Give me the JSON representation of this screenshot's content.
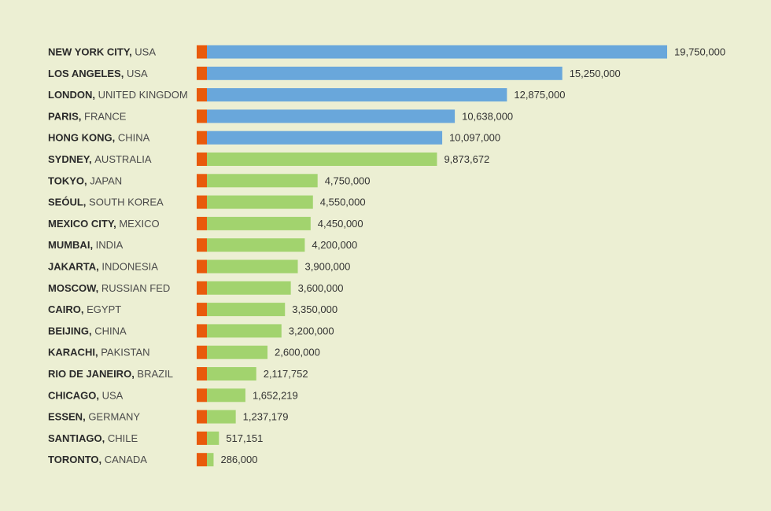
{
  "colors": {
    "background": "#ecefd3",
    "accent": "#e85a0c",
    "top_series": "#69a7db",
    "other_series": "#a2d36e"
  },
  "chart_data": {
    "type": "bar",
    "orientation": "horizontal",
    "title": "",
    "xlabel": "",
    "ylabel": "",
    "xlim": [
      0,
      19750000
    ],
    "grid": false,
    "legend": "none",
    "highlight_top_n": 5,
    "categories": [
      {
        "city": "NEW YORK CITY",
        "country": "USA"
      },
      {
        "city": "LOS ANGELES",
        "country": "USA"
      },
      {
        "city": "LONDON",
        "country": "UNITED KINGDOM"
      },
      {
        "city": "PARIS",
        "country": "FRANCE"
      },
      {
        "city": "HONG KONG",
        "country": "CHINA"
      },
      {
        "city": "SYDNEY",
        "country": "AUSTRALIA"
      },
      {
        "city": "TOKYO",
        "country": "JAPAN"
      },
      {
        "city": "SEÓUL",
        "country": "SOUTH KOREA"
      },
      {
        "city": "MEXICO CITY",
        "country": "MEXICO"
      },
      {
        "city": "MUMBAI",
        "country": "INDIA"
      },
      {
        "city": "JAKARTA",
        "country": "INDONESIA"
      },
      {
        "city": "MOSCOW",
        "country": "RUSSIAN FED"
      },
      {
        "city": "CAIRO",
        "country": "EGYPT"
      },
      {
        "city": "BEIJING",
        "country": "CHINA"
      },
      {
        "city": "KARACHI",
        "country": "PAKISTAN"
      },
      {
        "city": "RIO DE JANEIRO",
        "country": "BRAZIL"
      },
      {
        "city": "CHICAGO",
        "country": "USA"
      },
      {
        "city": "ESSEN",
        "country": "GERMANY"
      },
      {
        "city": "SANTIAGO",
        "country": "CHILE"
      },
      {
        "city": "TORONTO",
        "country": "CANADA"
      }
    ],
    "values": [
      19750000,
      15250000,
      12875000,
      10638000,
      10097000,
      9873672,
      4750000,
      4550000,
      4450000,
      4200000,
      3900000,
      3600000,
      3350000,
      3200000,
      2600000,
      2117752,
      1652219,
      1237179,
      517151,
      286000
    ],
    "value_labels": [
      "19,750,000",
      "15,250,000",
      "12,875,000",
      "10,638,000",
      "10,097,000",
      "9,873,672",
      "4,750,000",
      "4,550,000",
      "4,450,000",
      "4,200,000",
      "3,900,000",
      "3,600,000",
      "3,350,000",
      "3,200,000",
      "2,600,000",
      "2,117,752",
      "1,652,219",
      "1,237,179",
      "517,151",
      "286,000"
    ]
  }
}
